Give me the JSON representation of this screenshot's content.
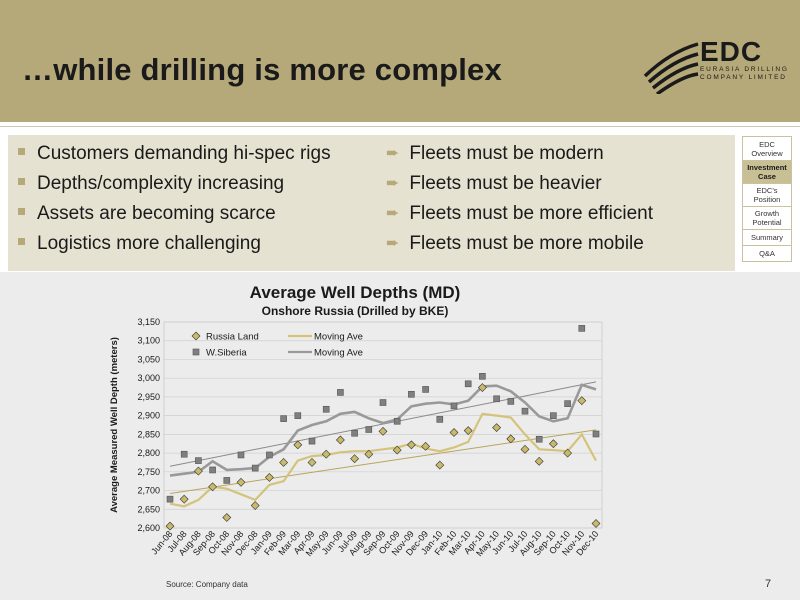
{
  "header": {
    "title": "…while drilling is more complex",
    "logo_text": "EDC",
    "logo_sub1": "EURASIA DRILLING",
    "logo_sub2": "COMPANY LIMITED"
  },
  "bullets_left": [
    "Customers demanding hi-spec rigs",
    "Depths/complexity increasing",
    "Assets are becoming scarce",
    "Logistics more challenging"
  ],
  "bullets_right": [
    "Fleets must be modern",
    "Fleets must be heavier",
    "Fleets must be more efficient",
    "Fleets must be more mobile"
  ],
  "nav": [
    {
      "label": "EDC Overview",
      "active": false
    },
    {
      "label": "Investment Case",
      "active": true
    },
    {
      "label": "EDC's Position",
      "active": false
    },
    {
      "label": "Growth Potential",
      "active": false
    },
    {
      "label": "Summary",
      "active": false
    },
    {
      "label": "Q&A",
      "active": false
    }
  ],
  "colors": {
    "accent": "#b5a97a",
    "russia_land": "#c9b96a",
    "russia_ma": "#d4c37a",
    "wsiberia": "#7f7f7f",
    "wsiberia_ma": "#999999"
  },
  "chart_data": {
    "type": "scatter",
    "title": "Average Well Depths (MD)",
    "subtitle": "Onshore Russia (Drilled by BKE)",
    "ylabel": "Average Measured Well Depth (meters)",
    "xlabel": "",
    "ylim": [
      2600,
      3150
    ],
    "yticks": [
      "2,600",
      "2,650",
      "2,700",
      "2,750",
      "2,800",
      "2,850",
      "2,900",
      "2,950",
      "3,000",
      "3,050",
      "3,100",
      "3,150"
    ],
    "ytick_values": [
      2600,
      2650,
      2700,
      2750,
      2800,
      2850,
      2900,
      2950,
      3000,
      3050,
      3100,
      3150
    ],
    "grid": true,
    "legend_placement": "top-left",
    "categories": [
      "Jun-08",
      "Jul-08",
      "Aug-08",
      "Sep-08",
      "Oct-08",
      "Nov-08",
      "Dec-08",
      "Jan-09",
      "Feb-09",
      "Mar-09",
      "Apr-09",
      "May-09",
      "Jun-09",
      "Jul-09",
      "Aug-09",
      "Sep-09",
      "Oct-09",
      "Nov-09",
      "Dec-09",
      "Jan-10",
      "Feb-10",
      "Mar-10",
      "Apr-10",
      "May-10",
      "Jun-10",
      "Jul-10",
      "Aug-10",
      "Sep-10",
      "Oct-10",
      "Nov-10",
      "Dec-10"
    ],
    "series": [
      {
        "name": "Russia Land",
        "kind": "scatter-diamond",
        "values": [
          2605,
          2677,
          2752,
          2710,
          2628,
          2722,
          2660,
          2735,
          2775,
          2822,
          2775,
          2797,
          2835,
          2785,
          2797,
          2858,
          2808,
          2822,
          2818,
          2768,
          2855,
          2860,
          2975,
          2868,
          2838,
          2810,
          2778,
          2825,
          2800,
          2940,
          2612
        ]
      },
      {
        "name": "Moving Ave",
        "kind": "line-russia",
        "values": [
          2665,
          2658,
          2675,
          2710,
          2705,
          2690,
          2675,
          2715,
          2725,
          2780,
          2792,
          2795,
          2802,
          2805,
          2805,
          2810,
          2815,
          2825,
          2812,
          2805,
          2815,
          2830,
          2905,
          2900,
          2895,
          2850,
          2810,
          2808,
          2805,
          2850,
          2780
        ]
      },
      {
        "name": "W.Siberia",
        "kind": "scatter-square",
        "values": [
          2677,
          2797,
          2780,
          2755,
          2727,
          2795,
          2760,
          2795,
          2892,
          2900,
          2832,
          2917,
          2962,
          2853,
          2863,
          2935,
          2885,
          2957,
          2970,
          2890,
          2926,
          2985,
          3005,
          2945,
          2938,
          2912,
          2837,
          2900,
          2932,
          3133,
          2851
        ]
      },
      {
        "name": "Moving Ave",
        "kind": "line-wsib",
        "values": [
          2740,
          2745,
          2750,
          2778,
          2755,
          2757,
          2760,
          2790,
          2810,
          2860,
          2875,
          2885,
          2905,
          2910,
          2893,
          2880,
          2890,
          2925,
          2932,
          2935,
          2930,
          2940,
          2978,
          2980,
          2965,
          2935,
          2898,
          2885,
          2893,
          2982,
          2970
        ]
      }
    ],
    "trendlines": [
      {
        "series": "Russia Land",
        "start": 2692,
        "end": 2862
      },
      {
        "series": "W.Siberia",
        "start": 2765,
        "end": 2990
      }
    ]
  },
  "source": "Source: Company data",
  "page_number": "7"
}
